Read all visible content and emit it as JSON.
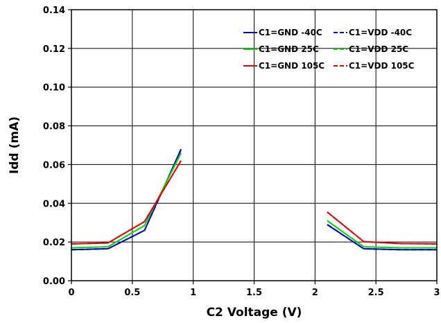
{
  "chart_data": {
    "type": "line",
    "xlabel": "C2 Voltage (V)",
    "ylabel": "Idd (mA)",
    "xlim": [
      0,
      3
    ],
    "ylim": [
      0,
      0.14
    ],
    "xticks": [
      0,
      0.5,
      1,
      1.5,
      2,
      2.5,
      3
    ],
    "xtick_labels": [
      "0",
      "0.5",
      "1",
      "1.5",
      "2",
      "2.5",
      "3"
    ],
    "yticks": [
      0,
      0.02,
      0.04,
      0.06,
      0.08,
      0.1,
      0.12,
      0.14
    ],
    "ytick_labels": [
      "0.00",
      "0.02",
      "0.04",
      "0.06",
      "0.08",
      "0.10",
      "0.12",
      "0.14"
    ],
    "grid": true,
    "legend_position": "top-right",
    "series": [
      {
        "name": "C1=GND -40C",
        "color": "#0000CC",
        "dash": "solid",
        "segments": [
          [
            [
              0,
              0.016
            ],
            [
              0.3,
              0.0165
            ],
            [
              0.6,
              0.026
            ],
            [
              0.9,
              0.068
            ]
          ],
          [
            [
              2.1,
              0.029
            ],
            [
              2.4,
              0.0165
            ],
            [
              2.7,
              0.016
            ],
            [
              3.0,
              0.016
            ]
          ]
        ]
      },
      {
        "name": "C1=VDD -40C",
        "color": "#0000CC",
        "dash": "dashed",
        "segments": [
          [
            [
              0,
              0.016
            ],
            [
              0.3,
              0.0165
            ],
            [
              0.6,
              0.026
            ],
            [
              0.9,
              0.0675
            ]
          ],
          [
            [
              2.1,
              0.029
            ],
            [
              2.4,
              0.0165
            ],
            [
              2.7,
              0.016
            ],
            [
              3.0,
              0.016
            ]
          ]
        ]
      },
      {
        "name": "C1=GND 25C",
        "color": "#00DD00",
        "dash": "solid",
        "segments": [
          [
            [
              0,
              0.017
            ],
            [
              0.3,
              0.0175
            ],
            [
              0.6,
              0.0285
            ],
            [
              0.9,
              0.066
            ]
          ],
          [
            [
              2.1,
              0.031
            ],
            [
              2.4,
              0.0175
            ],
            [
              2.7,
              0.017
            ],
            [
              3.0,
              0.017
            ]
          ]
        ]
      },
      {
        "name": "C1=VDD 25C",
        "color": "#00DD00",
        "dash": "dashed",
        "segments": [
          [
            [
              0,
              0.017
            ],
            [
              0.3,
              0.0175
            ],
            [
              0.6,
              0.0285
            ],
            [
              0.9,
              0.066
            ]
          ],
          [
            [
              2.1,
              0.031
            ],
            [
              2.4,
              0.0175
            ],
            [
              2.7,
              0.017
            ],
            [
              3.0,
              0.017
            ]
          ]
        ]
      },
      {
        "name": "C1=GND 105C",
        "color": "#EE0000",
        "dash": "solid",
        "segments": [
          [
            [
              0,
              0.019
            ],
            [
              0.3,
              0.0195
            ],
            [
              0.6,
              0.0305
            ],
            [
              0.9,
              0.062
            ]
          ],
          [
            [
              2.1,
              0.0355
            ],
            [
              2.4,
              0.0202
            ],
            [
              2.7,
              0.0192
            ],
            [
              3.0,
              0.019
            ]
          ]
        ]
      },
      {
        "name": "C1=VDD 105C",
        "color": "#EE0000",
        "dash": "dashed",
        "segments": [
          [
            [
              0,
              0.019
            ],
            [
              0.3,
              0.0195
            ],
            [
              0.6,
              0.0305
            ],
            [
              0.9,
              0.062
            ]
          ],
          [
            [
              2.1,
              0.0355
            ],
            [
              2.4,
              0.0202
            ],
            [
              2.7,
              0.0192
            ],
            [
              3.0,
              0.019
            ]
          ]
        ]
      }
    ]
  }
}
